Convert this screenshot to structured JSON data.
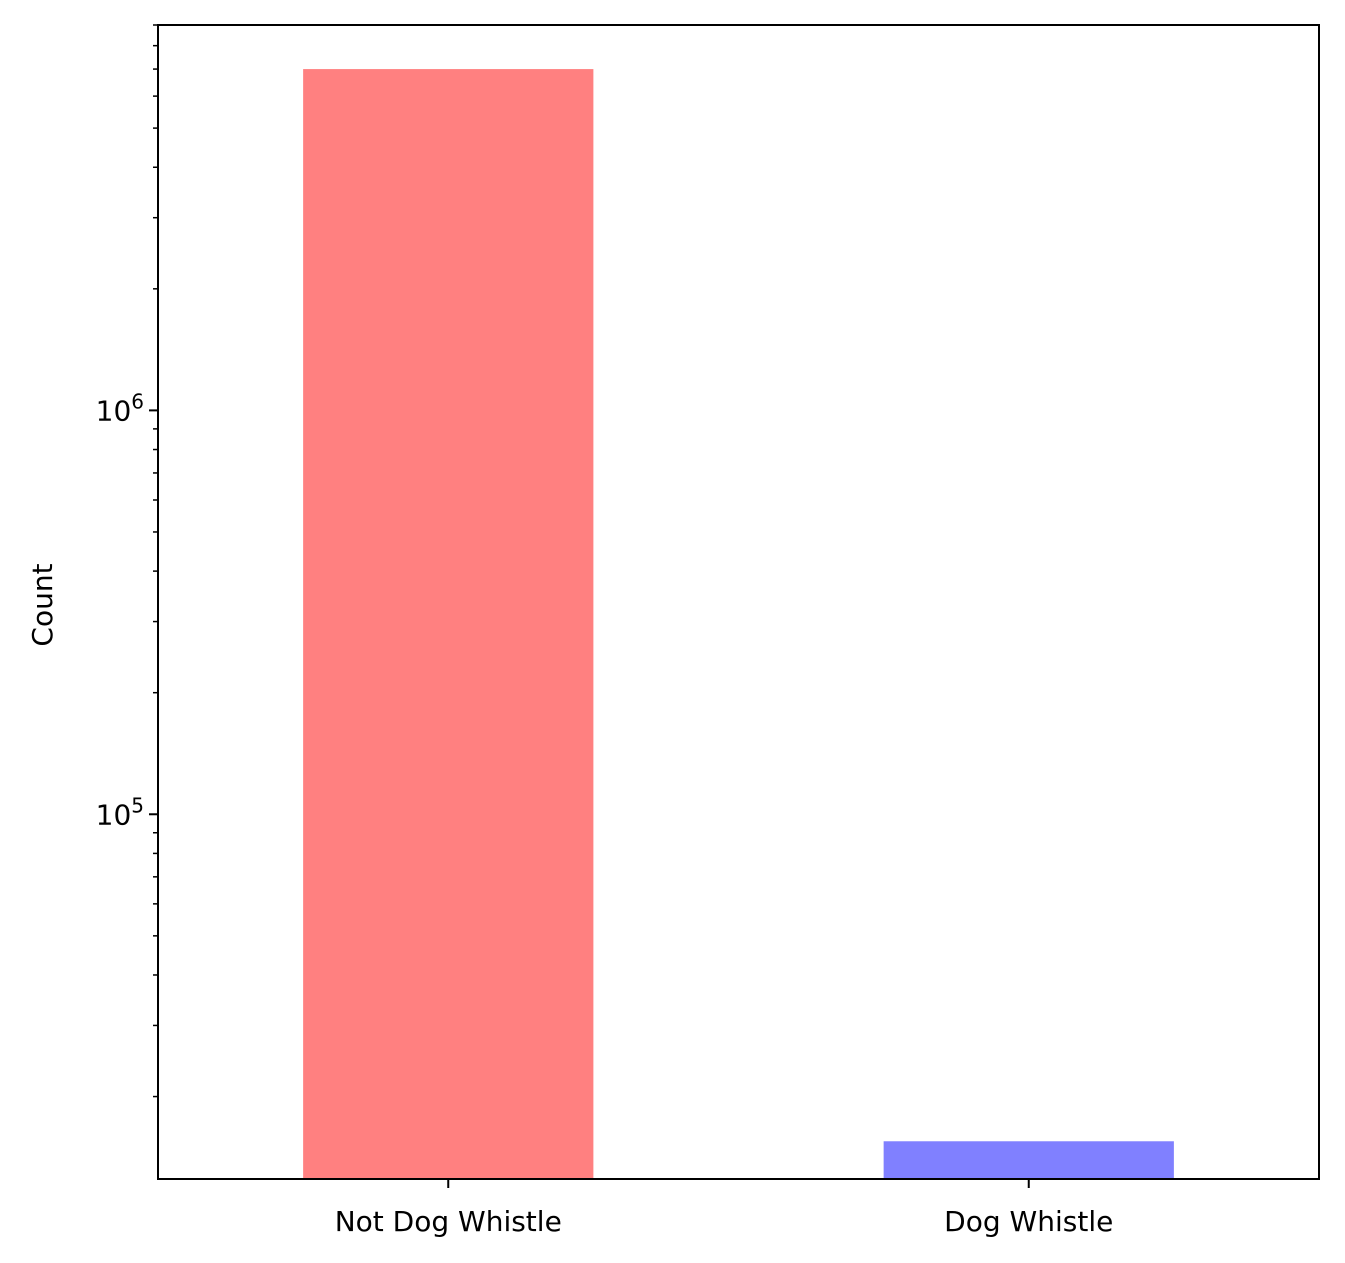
{
  "chart_data": {
    "type": "bar",
    "categories": [
      "Not Dog Whistle",
      "Dog Whistle"
    ],
    "values": [
      7000000,
      15500
    ],
    "colors": [
      "#ff8080",
      "#8080ff"
    ],
    "title": "",
    "xlabel": "",
    "ylabel": "Count",
    "yscale": "log",
    "ylim": [
      12500,
      9000000
    ],
    "y_major_ticks": [
      {
        "value": 100000,
        "base": "10",
        "exponent": "5"
      },
      {
        "value": 1000000,
        "base": "10",
        "exponent": "6"
      }
    ],
    "grid": false,
    "legend": "none"
  }
}
